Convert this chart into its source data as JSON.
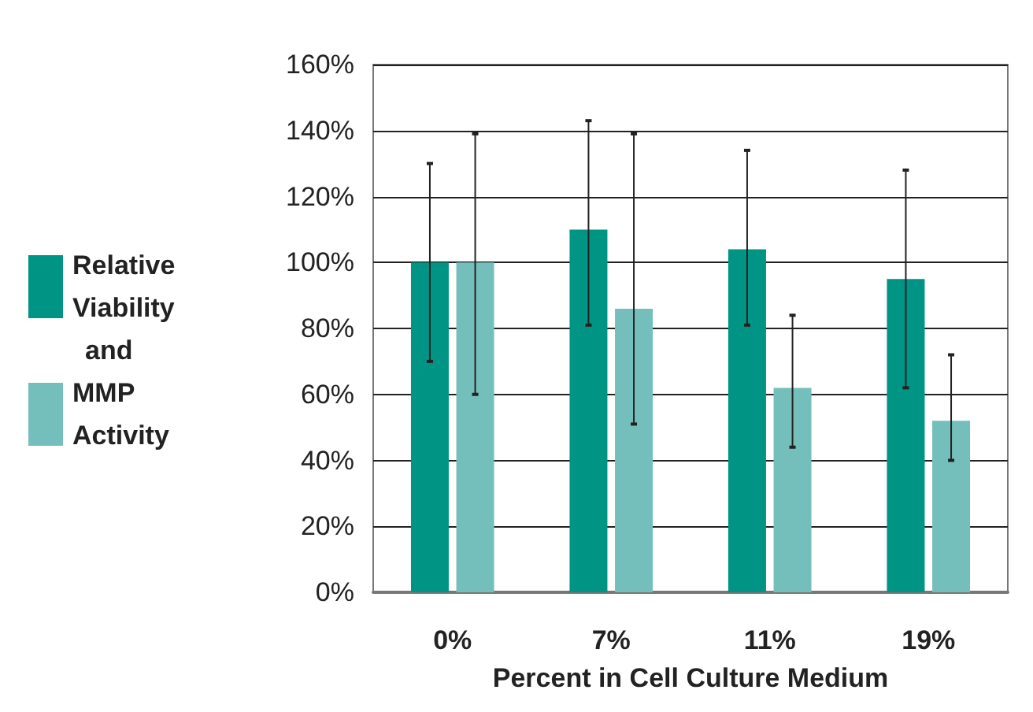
{
  "chart_data": {
    "type": "bar",
    "xlabel": "Percent in Cell Culture Medium",
    "categories": [
      "0%",
      "7%",
      "11%",
      "19%"
    ],
    "series": [
      {
        "name": "Relative Viability",
        "color": "#009485",
        "values": [
          100,
          110,
          104,
          95
        ],
        "errors": [
          [
            70,
            130
          ],
          [
            81,
            143
          ],
          [
            81,
            134
          ],
          [
            62,
            128
          ]
        ]
      },
      {
        "name": "MMP Activity",
        "color": "#74bfbb",
        "values": [
          100,
          86,
          62,
          52
        ],
        "errors": [
          [
            60,
            139
          ],
          [
            51,
            139
          ],
          [
            44,
            84
          ],
          [
            40,
            72
          ]
        ]
      }
    ],
    "annotations": [
      "and"
    ],
    "ylim": [
      0,
      160
    ],
    "yticks": [
      {
        "value": 0,
        "label": "0%"
      },
      {
        "value": 20,
        "label": "20%"
      },
      {
        "value": 40,
        "label": "40%"
      },
      {
        "value": 60,
        "label": "60%"
      },
      {
        "value": 80,
        "label": "80%"
      },
      {
        "value": 100,
        "label": "100%"
      },
      {
        "value": 120,
        "label": "120%"
      },
      {
        "value": 140,
        "label": "140%"
      },
      {
        "value": 160,
        "label": "160%"
      }
    ],
    "grid": "y",
    "legend": "left"
  }
}
